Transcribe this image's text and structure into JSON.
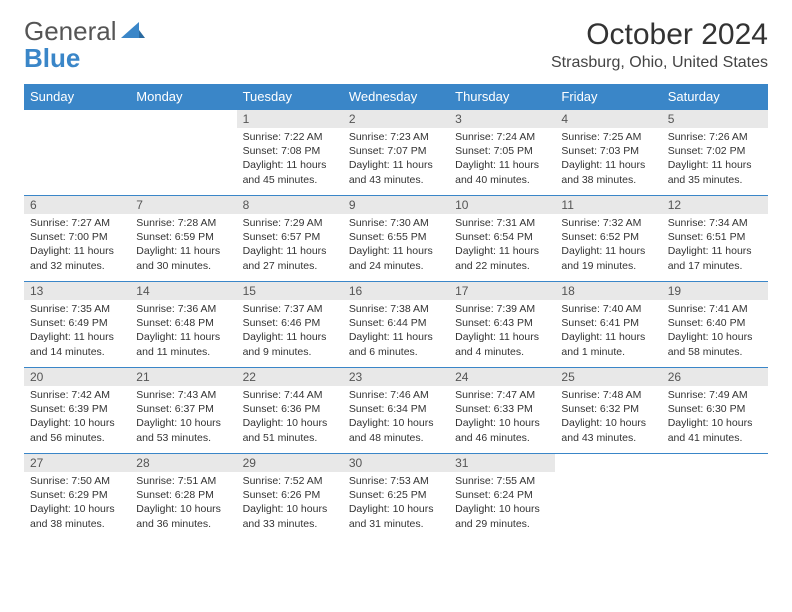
{
  "brand": {
    "part1": "General",
    "part2": "Blue"
  },
  "title": "October 2024",
  "location": "Strasburg, Ohio, United States",
  "header_bg": "#3a86c8",
  "daynames": [
    "Sunday",
    "Monday",
    "Tuesday",
    "Wednesday",
    "Thursday",
    "Friday",
    "Saturday"
  ],
  "weeks": [
    [
      {
        "empty": true
      },
      {
        "empty": true
      },
      {
        "num": "1",
        "sunrise": "7:22 AM",
        "sunset": "7:08 PM",
        "daylight": "11 hours and 45 minutes."
      },
      {
        "num": "2",
        "sunrise": "7:23 AM",
        "sunset": "7:07 PM",
        "daylight": "11 hours and 43 minutes."
      },
      {
        "num": "3",
        "sunrise": "7:24 AM",
        "sunset": "7:05 PM",
        "daylight": "11 hours and 40 minutes."
      },
      {
        "num": "4",
        "sunrise": "7:25 AM",
        "sunset": "7:03 PM",
        "daylight": "11 hours and 38 minutes."
      },
      {
        "num": "5",
        "sunrise": "7:26 AM",
        "sunset": "7:02 PM",
        "daylight": "11 hours and 35 minutes."
      }
    ],
    [
      {
        "num": "6",
        "sunrise": "7:27 AM",
        "sunset": "7:00 PM",
        "daylight": "11 hours and 32 minutes."
      },
      {
        "num": "7",
        "sunrise": "7:28 AM",
        "sunset": "6:59 PM",
        "daylight": "11 hours and 30 minutes."
      },
      {
        "num": "8",
        "sunrise": "7:29 AM",
        "sunset": "6:57 PM",
        "daylight": "11 hours and 27 minutes."
      },
      {
        "num": "9",
        "sunrise": "7:30 AM",
        "sunset": "6:55 PM",
        "daylight": "11 hours and 24 minutes."
      },
      {
        "num": "10",
        "sunrise": "7:31 AM",
        "sunset": "6:54 PM",
        "daylight": "11 hours and 22 minutes."
      },
      {
        "num": "11",
        "sunrise": "7:32 AM",
        "sunset": "6:52 PM",
        "daylight": "11 hours and 19 minutes."
      },
      {
        "num": "12",
        "sunrise": "7:34 AM",
        "sunset": "6:51 PM",
        "daylight": "11 hours and 17 minutes."
      }
    ],
    [
      {
        "num": "13",
        "sunrise": "7:35 AM",
        "sunset": "6:49 PM",
        "daylight": "11 hours and 14 minutes."
      },
      {
        "num": "14",
        "sunrise": "7:36 AM",
        "sunset": "6:48 PM",
        "daylight": "11 hours and 11 minutes."
      },
      {
        "num": "15",
        "sunrise": "7:37 AM",
        "sunset": "6:46 PM",
        "daylight": "11 hours and 9 minutes."
      },
      {
        "num": "16",
        "sunrise": "7:38 AM",
        "sunset": "6:44 PM",
        "daylight": "11 hours and 6 minutes."
      },
      {
        "num": "17",
        "sunrise": "7:39 AM",
        "sunset": "6:43 PM",
        "daylight": "11 hours and 4 minutes."
      },
      {
        "num": "18",
        "sunrise": "7:40 AM",
        "sunset": "6:41 PM",
        "daylight": "11 hours and 1 minute."
      },
      {
        "num": "19",
        "sunrise": "7:41 AM",
        "sunset": "6:40 PM",
        "daylight": "10 hours and 58 minutes."
      }
    ],
    [
      {
        "num": "20",
        "sunrise": "7:42 AM",
        "sunset": "6:39 PM",
        "daylight": "10 hours and 56 minutes."
      },
      {
        "num": "21",
        "sunrise": "7:43 AM",
        "sunset": "6:37 PM",
        "daylight": "10 hours and 53 minutes."
      },
      {
        "num": "22",
        "sunrise": "7:44 AM",
        "sunset": "6:36 PM",
        "daylight": "10 hours and 51 minutes."
      },
      {
        "num": "23",
        "sunrise": "7:46 AM",
        "sunset": "6:34 PM",
        "daylight": "10 hours and 48 minutes."
      },
      {
        "num": "24",
        "sunrise": "7:47 AM",
        "sunset": "6:33 PM",
        "daylight": "10 hours and 46 minutes."
      },
      {
        "num": "25",
        "sunrise": "7:48 AM",
        "sunset": "6:32 PM",
        "daylight": "10 hours and 43 minutes."
      },
      {
        "num": "26",
        "sunrise": "7:49 AM",
        "sunset": "6:30 PM",
        "daylight": "10 hours and 41 minutes."
      }
    ],
    [
      {
        "num": "27",
        "sunrise": "7:50 AM",
        "sunset": "6:29 PM",
        "daylight": "10 hours and 38 minutes."
      },
      {
        "num": "28",
        "sunrise": "7:51 AM",
        "sunset": "6:28 PM",
        "daylight": "10 hours and 36 minutes."
      },
      {
        "num": "29",
        "sunrise": "7:52 AM",
        "sunset": "6:26 PM",
        "daylight": "10 hours and 33 minutes."
      },
      {
        "num": "30",
        "sunrise": "7:53 AM",
        "sunset": "6:25 PM",
        "daylight": "10 hours and 31 minutes."
      },
      {
        "num": "31",
        "sunrise": "7:55 AM",
        "sunset": "6:24 PM",
        "daylight": "10 hours and 29 minutes."
      },
      {
        "empty": true
      },
      {
        "empty": true
      }
    ]
  ]
}
